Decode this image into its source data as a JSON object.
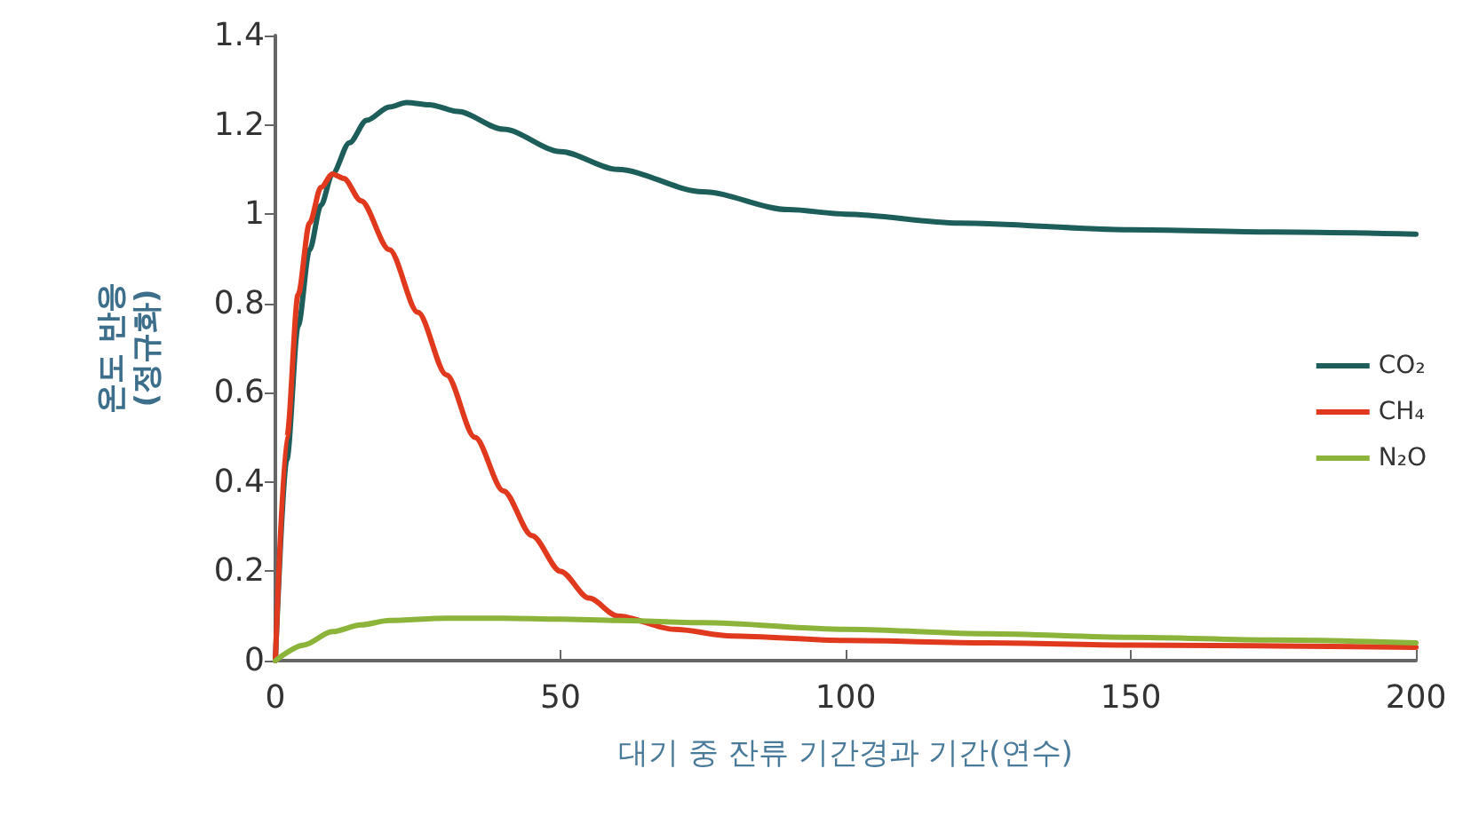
{
  "chart_data": {
    "type": "line",
    "xlabel": "대기 중 잔류 기간경과 기간(연수)",
    "ylabel": "온도 반응\n(정규화)",
    "xlim": [
      0,
      200
    ],
    "xticks": [
      0,
      50,
      100,
      150,
      200
    ],
    "ylim": [
      0,
      1.4
    ],
    "yticks": [
      0,
      0.2,
      0.4,
      0.6,
      0.8,
      1,
      1.2,
      1.4
    ],
    "grid": false,
    "legend": "right",
    "marker": "none",
    "line_style": "solid",
    "series": [
      {
        "name": "CO₂",
        "color": "#1e5e5a",
        "x": [
          0,
          2,
          4,
          6,
          8,
          10,
          13,
          16,
          20,
          23,
          27,
          32,
          40,
          50,
          60,
          75,
          90,
          100,
          120,
          150,
          175,
          200
        ],
        "values": [
          0,
          0.45,
          0.75,
          0.92,
          1.02,
          1.09,
          1.16,
          1.21,
          1.24,
          1.25,
          1.245,
          1.23,
          1.19,
          1.14,
          1.1,
          1.05,
          1.01,
          1.0,
          0.98,
          0.965,
          0.96,
          0.955
        ]
      },
      {
        "name": "CH₄",
        "color": "#e0391e",
        "x": [
          0,
          2,
          4,
          6,
          8,
          10,
          12,
          15,
          20,
          25,
          30,
          35,
          40,
          45,
          50,
          55,
          60,
          70,
          80,
          100,
          125,
          150,
          200
        ],
        "values": [
          0,
          0.5,
          0.82,
          0.98,
          1.06,
          1.09,
          1.08,
          1.03,
          0.92,
          0.78,
          0.64,
          0.5,
          0.38,
          0.28,
          0.2,
          0.14,
          0.1,
          0.07,
          0.055,
          0.045,
          0.04,
          0.035,
          0.03
        ]
      },
      {
        "name": "N₂O",
        "color": "#8cb33a",
        "x": [
          0,
          5,
          10,
          15,
          20,
          30,
          40,
          50,
          60,
          75,
          100,
          125,
          150,
          175,
          200
        ],
        "values": [
          0,
          0.035,
          0.065,
          0.08,
          0.09,
          0.095,
          0.095,
          0.093,
          0.09,
          0.085,
          0.07,
          0.06,
          0.052,
          0.046,
          0.04
        ]
      }
    ]
  }
}
